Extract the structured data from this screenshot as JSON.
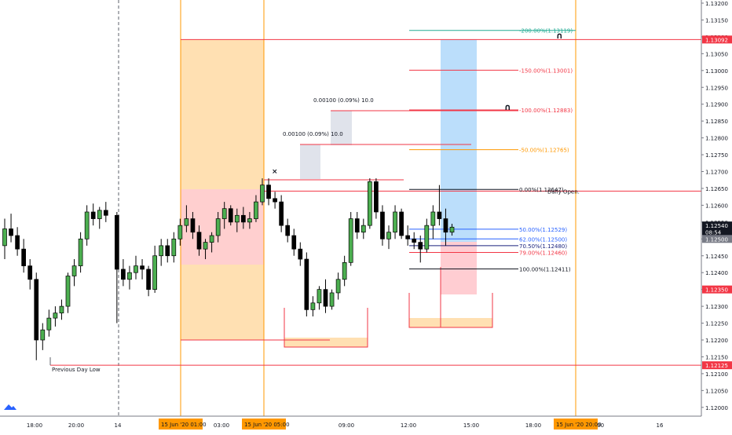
{
  "chart_data": {
    "type": "candlestick",
    "y_axis": {
      "ticks": [
        "1.13200",
        "1.13150",
        "1.13100",
        "1.13050",
        "1.13000",
        "1.12950",
        "1.12900",
        "1.12850",
        "1.12800",
        "1.12750",
        "1.12700",
        "1.12650",
        "1.12600",
        "1.12550",
        "1.12500",
        "1.12450",
        "1.12400",
        "1.12350",
        "1.12300",
        "1.12250",
        "1.12200",
        "1.12150",
        "1.12100",
        "1.12050",
        "1.12000"
      ],
      "range": [
        1.11985,
        1.13205
      ]
    },
    "x_axis": {
      "ticks": [
        "18:00",
        "20:00",
        "14",
        "03:00",
        "09:00",
        "12:00",
        "15:00",
        "18:00",
        "21:00",
        "16"
      ],
      "highlight_labels": [
        "15 Jun '20   01:00",
        "15 Jun '20   05:00",
        "15 Jun '20   20:00"
      ]
    },
    "price_tags": [
      {
        "label": "1.13092",
        "price": 1.13092,
        "color": "#f23645"
      },
      {
        "label": "1.12540",
        "price": 1.1254,
        "color": "#131722"
      },
      {
        "label": "08:54",
        "price": 1.1252,
        "color": "#131722"
      },
      {
        "label": "1.12500",
        "price": 1.125,
        "color": "#787b86"
      },
      {
        "label": "1.12350",
        "price": 1.1235,
        "color": "#f23645"
      },
      {
        "label": "1.12125",
        "price": 1.12125,
        "color": "#f23645"
      }
    ],
    "candles": [
      {
        "o": 1.1248,
        "h": 1.1256,
        "l": 1.1244,
        "c": 1.1253
      },
      {
        "o": 1.1253,
        "h": 1.12575,
        "l": 1.1249,
        "c": 1.1251
      },
      {
        "o": 1.1251,
        "h": 1.12535,
        "l": 1.1245,
        "c": 1.1247
      },
      {
        "o": 1.1247,
        "h": 1.125,
        "l": 1.124,
        "c": 1.1242
      },
      {
        "o": 1.1242,
        "h": 1.1244,
        "l": 1.1235,
        "c": 1.1238
      },
      {
        "o": 1.1238,
        "h": 1.124,
        "l": 1.1214,
        "c": 1.122
      },
      {
        "o": 1.122,
        "h": 1.1225,
        "l": 1.1217,
        "c": 1.1223
      },
      {
        "o": 1.1223,
        "h": 1.1229,
        "l": 1.1221,
        "c": 1.12265
      },
      {
        "o": 1.12265,
        "h": 1.123,
        "l": 1.1224,
        "c": 1.1228
      },
      {
        "o": 1.1228,
        "h": 1.1232,
        "l": 1.1226,
        "c": 1.123
      },
      {
        "o": 1.123,
        "h": 1.124,
        "l": 1.1228,
        "c": 1.1239
      },
      {
        "o": 1.1239,
        "h": 1.1244,
        "l": 1.1236,
        "c": 1.1242
      },
      {
        "o": 1.1242,
        "h": 1.1252,
        "l": 1.124,
        "c": 1.125
      },
      {
        "o": 1.125,
        "h": 1.126,
        "l": 1.1248,
        "c": 1.1258
      },
      {
        "o": 1.1258,
        "h": 1.12605,
        "l": 1.1254,
        "c": 1.1256
      },
      {
        "o": 1.1256,
        "h": 1.12595,
        "l": 1.1253,
        "c": 1.12585
      },
      {
        "o": 1.12585,
        "h": 1.1261,
        "l": 1.1255,
        "c": 1.1257
      },
      {
        "o": 1.1257,
        "h": 1.1258,
        "l": 1.1225,
        "c": 1.1241
      },
      {
        "o": 1.1241,
        "h": 1.1244,
        "l": 1.1236,
        "c": 1.1238
      },
      {
        "o": 1.1238,
        "h": 1.1242,
        "l": 1.1235,
        "c": 1.124
      },
      {
        "o": 1.124,
        "h": 1.1245,
        "l": 1.1238,
        "c": 1.1242
      },
      {
        "o": 1.1242,
        "h": 1.1244,
        "l": 1.1238,
        "c": 1.1241
      },
      {
        "o": 1.1241,
        "h": 1.1242,
        "l": 1.1233,
        "c": 1.1235
      },
      {
        "o": 1.1235,
        "h": 1.1248,
        "l": 1.1234,
        "c": 1.1245
      },
      {
        "o": 1.1245,
        "h": 1.125,
        "l": 1.1242,
        "c": 1.1248
      },
      {
        "o": 1.1248,
        "h": 1.125,
        "l": 1.1243,
        "c": 1.1245
      },
      {
        "o": 1.1245,
        "h": 1.1252,
        "l": 1.1243,
        "c": 1.125
      },
      {
        "o": 1.125,
        "h": 1.1256,
        "l": 1.1248,
        "c": 1.1254
      },
      {
        "o": 1.1254,
        "h": 1.126,
        "l": 1.1252,
        "c": 1.1256
      },
      {
        "o": 1.1256,
        "h": 1.1258,
        "l": 1.125,
        "c": 1.1252
      },
      {
        "o": 1.1252,
        "h": 1.1254,
        "l": 1.1245,
        "c": 1.1247
      },
      {
        "o": 1.1247,
        "h": 1.125,
        "l": 1.1244,
        "c": 1.1249
      },
      {
        "o": 1.1249,
        "h": 1.1252,
        "l": 1.1246,
        "c": 1.1251
      },
      {
        "o": 1.1251,
        "h": 1.1258,
        "l": 1.1249,
        "c": 1.1256
      },
      {
        "o": 1.1256,
        "h": 1.1261,
        "l": 1.1253,
        "c": 1.1259
      },
      {
        "o": 1.1259,
        "h": 1.126,
        "l": 1.1254,
        "c": 1.1255
      },
      {
        "o": 1.1255,
        "h": 1.1259,
        "l": 1.1252,
        "c": 1.1257
      },
      {
        "o": 1.1257,
        "h": 1.12595,
        "l": 1.1253,
        "c": 1.1255
      },
      {
        "o": 1.1255,
        "h": 1.1258,
        "l": 1.1253,
        "c": 1.1256
      },
      {
        "o": 1.1256,
        "h": 1.1263,
        "l": 1.1255,
        "c": 1.1261
      },
      {
        "o": 1.1261,
        "h": 1.1268,
        "l": 1.126,
        "c": 1.1266
      },
      {
        "o": 1.1266,
        "h": 1.1268,
        "l": 1.126,
        "c": 1.1262
      },
      {
        "o": 1.1262,
        "h": 1.1264,
        "l": 1.1259,
        "c": 1.1261
      },
      {
        "o": 1.1261,
        "h": 1.1263,
        "l": 1.1252,
        "c": 1.1254
      },
      {
        "o": 1.1254,
        "h": 1.1256,
        "l": 1.1249,
        "c": 1.1251
      },
      {
        "o": 1.1251,
        "h": 1.1253,
        "l": 1.1245,
        "c": 1.1247
      },
      {
        "o": 1.1247,
        "h": 1.1249,
        "l": 1.1242,
        "c": 1.1244
      },
      {
        "o": 1.1244,
        "h": 1.1246,
        "l": 1.1227,
        "c": 1.1229
      },
      {
        "o": 1.1229,
        "h": 1.1233,
        "l": 1.1227,
        "c": 1.1231
      },
      {
        "o": 1.1231,
        "h": 1.1236,
        "l": 1.1229,
        "c": 1.1235
      },
      {
        "o": 1.1235,
        "h": 1.1238,
        "l": 1.1228,
        "c": 1.123
      },
      {
        "o": 1.123,
        "h": 1.1235,
        "l": 1.1229,
        "c": 1.1234
      },
      {
        "o": 1.1234,
        "h": 1.124,
        "l": 1.1232,
        "c": 1.1238
      },
      {
        "o": 1.1238,
        "h": 1.1245,
        "l": 1.1236,
        "c": 1.1243
      },
      {
        "o": 1.1243,
        "h": 1.1258,
        "l": 1.1242,
        "c": 1.1256
      },
      {
        "o": 1.1256,
        "h": 1.1258,
        "l": 1.125,
        "c": 1.1252
      },
      {
        "o": 1.1252,
        "h": 1.1256,
        "l": 1.125,
        "c": 1.1254
      },
      {
        "o": 1.1254,
        "h": 1.1268,
        "l": 1.1253,
        "c": 1.1267
      },
      {
        "o": 1.1267,
        "h": 1.1268,
        "l": 1.1256,
        "c": 1.1258
      },
      {
        "o": 1.1258,
        "h": 1.126,
        "l": 1.1248,
        "c": 1.125
      },
      {
        "o": 1.125,
        "h": 1.1254,
        "l": 1.1247,
        "c": 1.1252
      },
      {
        "o": 1.1252,
        "h": 1.126,
        "l": 1.125,
        "c": 1.1258
      },
      {
        "o": 1.1258,
        "h": 1.1259,
        "l": 1.125,
        "c": 1.1251
      },
      {
        "o": 1.1251,
        "h": 1.1254,
        "l": 1.1248,
        "c": 1.125
      },
      {
        "o": 1.125,
        "h": 1.1252,
        "l": 1.1247,
        "c": 1.1249
      },
      {
        "o": 1.1249,
        "h": 1.1251,
        "l": 1.1243,
        "c": 1.1247
      },
      {
        "o": 1.1247,
        "h": 1.1256,
        "l": 1.1246,
        "c": 1.1254
      },
      {
        "o": 1.1254,
        "h": 1.126,
        "l": 1.125,
        "c": 1.1258
      },
      {
        "o": 1.1258,
        "h": 1.1266,
        "l": 1.1254,
        "c": 1.1256
      },
      {
        "o": 1.1256,
        "h": 1.1259,
        "l": 1.1248,
        "c": 1.1252
      },
      {
        "o": 1.1252,
        "h": 1.12545,
        "l": 1.1251,
        "c": 1.12535
      }
    ],
    "levels": [
      {
        "label": "Previous Day Low",
        "price": 1.12125,
        "color": "#f23645"
      },
      {
        "label": "Daily Open.",
        "price": 1.12642,
        "color": "#f23645"
      }
    ],
    "fibonacci": [
      {
        "label": "-200.00%(1.13119)",
        "price": 1.13119,
        "color": "#22ab94"
      },
      {
        "label": "-150.00%(1.13001)",
        "price": 1.13001,
        "color": "#f23645"
      },
      {
        "label": "-100.00%(1.12883)",
        "price": 1.12883,
        "color": "#f23645"
      },
      {
        "label": "-50.00%(1.12765)",
        "price": 1.12765,
        "color": "#ff9800"
      },
      {
        "label": "0.00%(1.12647)",
        "price": 1.12647,
        "color": "#131722"
      },
      {
        "label": "50.00%(1.12529)",
        "price": 1.12529,
        "color": "#2962ff"
      },
      {
        "label": "62.00%(1.12500)",
        "price": 1.125,
        "color": "#2962ff"
      },
      {
        "label": "70.50%(1.12480)",
        "price": 1.1248,
        "color": "#1a237e"
      },
      {
        "label": "79.00%(1.12460)",
        "price": 1.1246,
        "color": "#f23645"
      },
      {
        "label": "100.00%(1.12411)",
        "price": 1.12411,
        "color": "#131722"
      }
    ],
    "measurements": [
      "0.00100 (0.09%) 10.0",
      "0.00100 (0.09%) 10.0"
    ],
    "colors": {
      "up": "#4caf50",
      "down": "#000000",
      "session_orange": "#ffe0b2",
      "session_red": "#ffcdd2",
      "target_blue": "#bbdefb"
    }
  }
}
